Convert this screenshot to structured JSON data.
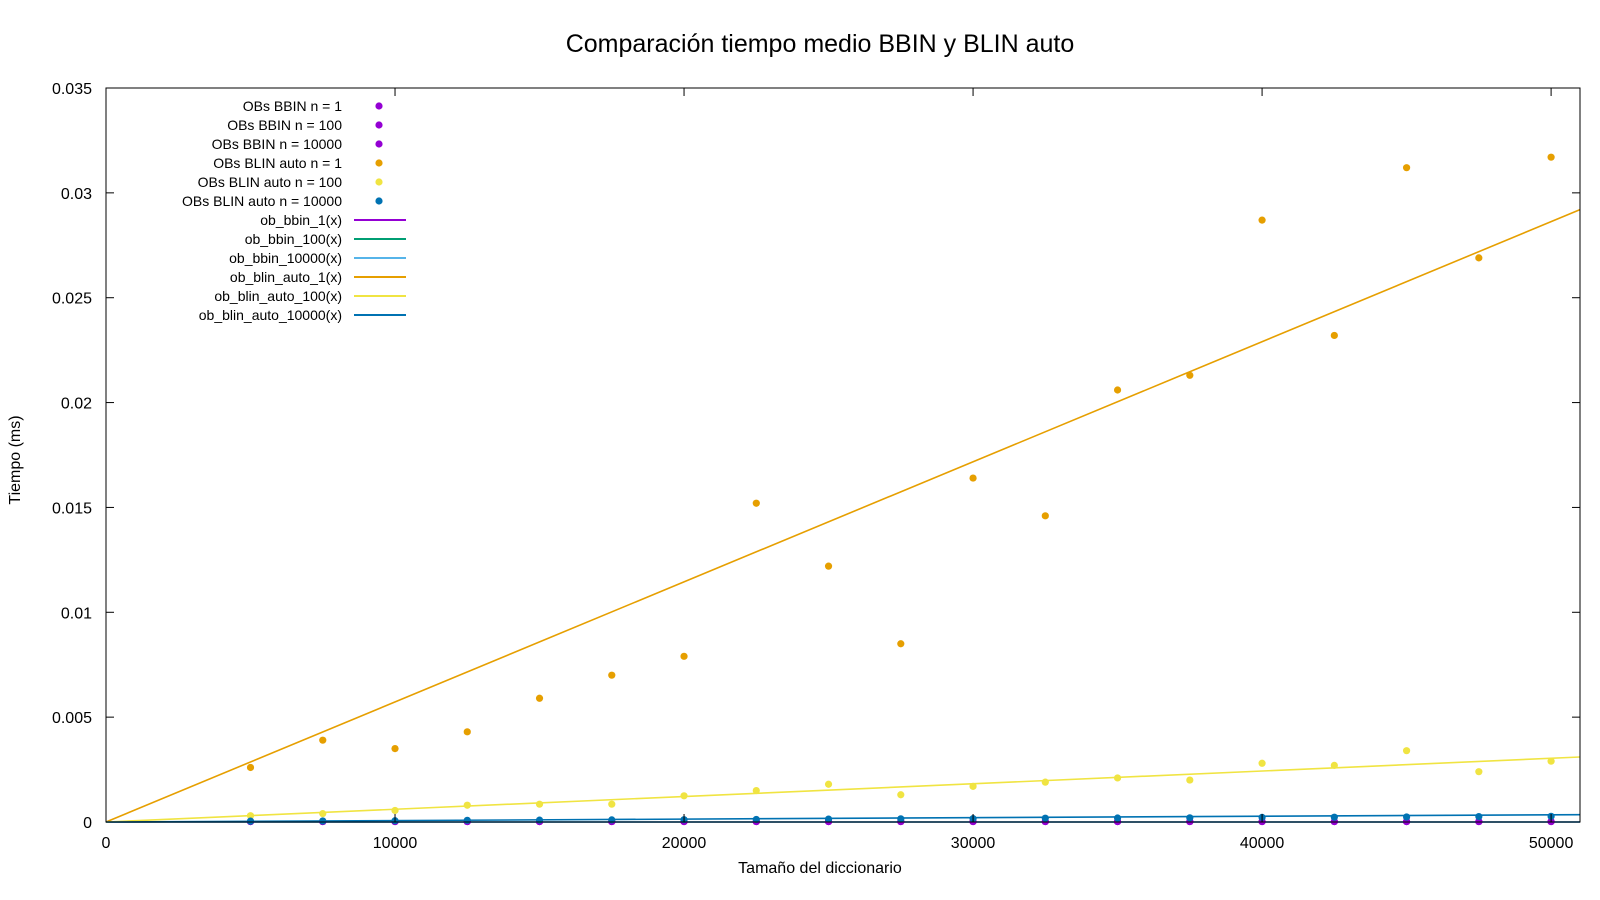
{
  "chart_data": {
    "type": "scatter",
    "title": "Comparación tiempo medio BBIN y BLIN auto",
    "xlabel": "Tamaño del diccionario",
    "ylabel": "Tiempo (ms)",
    "xlim": [
      0,
      51000
    ],
    "ylim": [
      0,
      0.035
    ],
    "xticks": [
      0,
      10000,
      20000,
      30000,
      40000,
      50000
    ],
    "yticks": [
      0,
      0.005,
      0.01,
      0.015,
      0.02,
      0.025,
      0.03,
      0.035
    ],
    "xtick_labels": [
      "0",
      "10000",
      "20000",
      "30000",
      "40000",
      "50000"
    ],
    "ytick_labels": [
      "0",
      "0.005",
      "0.01",
      "0.015",
      "0.02",
      "0.025",
      "0.03",
      "0.035"
    ],
    "grid": false,
    "legend_position": "top-left",
    "x": [
      5000,
      7500,
      10000,
      12500,
      15000,
      17500,
      20000,
      22500,
      25000,
      27500,
      30000,
      32500,
      35000,
      37500,
      40000,
      42500,
      45000,
      47500,
      50000
    ],
    "series": [
      {
        "name": "OBs BBIN n = 1",
        "kind": "points",
        "color": "#9400d3",
        "values": [
          2e-05,
          2e-05,
          2e-05,
          2e-05,
          2e-05,
          2e-05,
          2e-05,
          2e-05,
          2e-05,
          2e-05,
          2e-05,
          2e-05,
          2e-05,
          2e-05,
          2e-05,
          2e-05,
          2e-05,
          2e-05,
          2e-05
        ]
      },
      {
        "name": "OBs BBIN n = 100",
        "kind": "points",
        "color": "#9400d3",
        "values": [
          2e-05,
          2e-05,
          2e-05,
          2e-05,
          2e-05,
          2e-05,
          2e-05,
          2e-05,
          2e-05,
          2e-05,
          2e-05,
          2e-05,
          2e-05,
          2e-05,
          2e-05,
          2e-05,
          2e-05,
          2e-05,
          2e-05
        ]
      },
      {
        "name": "OBs BBIN n = 10000",
        "kind": "points",
        "color": "#9400d3",
        "values": [
          2e-05,
          2e-05,
          2e-05,
          2e-05,
          2e-05,
          2e-05,
          2e-05,
          2e-05,
          2e-05,
          2e-05,
          2e-05,
          2e-05,
          2e-05,
          2e-05,
          2e-05,
          2e-05,
          2e-05,
          2e-05,
          2e-05
        ]
      },
      {
        "name": "OBs BLIN auto n = 1",
        "kind": "points",
        "color": "#e69f00",
        "values": [
          0.0026,
          0.0039,
          0.0035,
          0.0043,
          0.0059,
          0.007,
          0.0079,
          0.0152,
          0.0122,
          0.0085,
          0.0164,
          0.0146,
          0.0206,
          0.0213,
          0.0287,
          0.0232,
          0.0312,
          0.0269,
          0.0317
        ]
      },
      {
        "name": "OBs BLIN auto n = 100",
        "kind": "points",
        "color": "#f0e442",
        "values": [
          0.0003,
          0.0004,
          0.00055,
          0.0008,
          0.00085,
          0.00085,
          0.00125,
          0.0015,
          0.0018,
          0.0013,
          0.0017,
          0.0019,
          0.0021,
          0.002,
          0.0028,
          0.0027,
          0.0034,
          0.0024,
          0.0029
        ]
      },
      {
        "name": "OBs BLIN auto n = 10000",
        "kind": "points",
        "color": "#0072b2",
        "values": [
          4e-05,
          5e-05,
          6e-05,
          8e-05,
          9e-05,
          0.0001,
          0.00011,
          0.00012,
          0.00014,
          0.00015,
          0.00016,
          0.00018,
          0.00019,
          0.0002,
          0.00022,
          0.00023,
          0.00024,
          0.00026,
          0.00027
        ]
      },
      {
        "name": "ob_bbin_1(x)",
        "kind": "line",
        "color": "#9400d3",
        "x": [
          0,
          51000
        ],
        "values": [
          0.0,
          0.0
        ]
      },
      {
        "name": "ob_bbin_100(x)",
        "kind": "line",
        "color": "#009e73",
        "x": [
          0,
          51000
        ],
        "values": [
          0.0,
          0.0
        ]
      },
      {
        "name": "ob_bbin_10000(x)",
        "kind": "line",
        "color": "#56b4e9",
        "x": [
          0,
          51000
        ],
        "values": [
          0.0,
          0.0
        ]
      },
      {
        "name": "ob_blin_auto_1(x)",
        "kind": "line",
        "color": "#e69f00",
        "x": [
          0,
          51000
        ],
        "values": [
          0.0,
          0.0292
        ]
      },
      {
        "name": "ob_blin_auto_100(x)",
        "kind": "line",
        "color": "#f0e442",
        "x": [
          0,
          51000
        ],
        "values": [
          0.0,
          0.0031
        ]
      },
      {
        "name": "ob_blin_auto_10000(x)",
        "kind": "line",
        "color": "#0072b2",
        "x": [
          0,
          51000
        ],
        "values": [
          0.0,
          0.00035
        ]
      }
    ]
  }
}
